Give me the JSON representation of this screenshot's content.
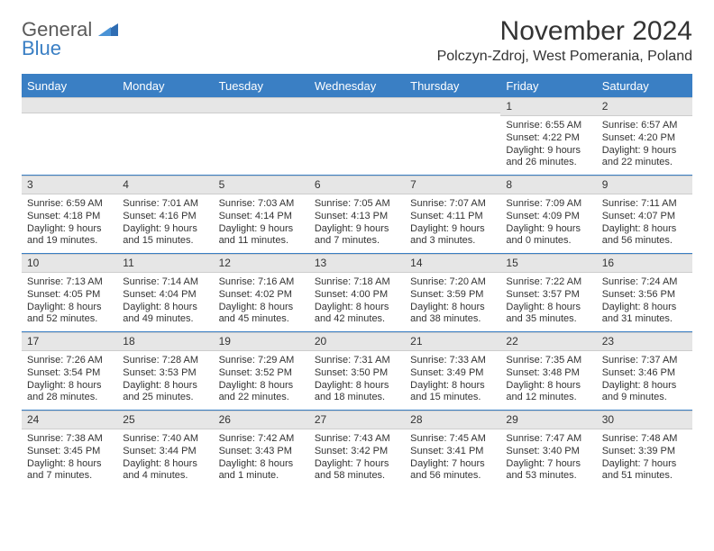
{
  "logo": {
    "general": "General",
    "blue": "Blue"
  },
  "title": "November 2024",
  "subtitle": "Polczyn-Zdroj, West Pomerania, Poland",
  "colors": {
    "brand_blue": "#3a7fc4",
    "header_text": "#ffffff",
    "daynum_bg": "#e6e6e6",
    "text": "#333333"
  },
  "day_names": [
    "Sunday",
    "Monday",
    "Tuesday",
    "Wednesday",
    "Thursday",
    "Friday",
    "Saturday"
  ],
  "weeks": [
    [
      {
        "n": "",
        "sr": "",
        "ss": "",
        "dl": ""
      },
      {
        "n": "",
        "sr": "",
        "ss": "",
        "dl": ""
      },
      {
        "n": "",
        "sr": "",
        "ss": "",
        "dl": ""
      },
      {
        "n": "",
        "sr": "",
        "ss": "",
        "dl": ""
      },
      {
        "n": "",
        "sr": "",
        "ss": "",
        "dl": ""
      },
      {
        "n": "1",
        "sr": "Sunrise: 6:55 AM",
        "ss": "Sunset: 4:22 PM",
        "dl": "Daylight: 9 hours and 26 minutes."
      },
      {
        "n": "2",
        "sr": "Sunrise: 6:57 AM",
        "ss": "Sunset: 4:20 PM",
        "dl": "Daylight: 9 hours and 22 minutes."
      }
    ],
    [
      {
        "n": "3",
        "sr": "Sunrise: 6:59 AM",
        "ss": "Sunset: 4:18 PM",
        "dl": "Daylight: 9 hours and 19 minutes."
      },
      {
        "n": "4",
        "sr": "Sunrise: 7:01 AM",
        "ss": "Sunset: 4:16 PM",
        "dl": "Daylight: 9 hours and 15 minutes."
      },
      {
        "n": "5",
        "sr": "Sunrise: 7:03 AM",
        "ss": "Sunset: 4:14 PM",
        "dl": "Daylight: 9 hours and 11 minutes."
      },
      {
        "n": "6",
        "sr": "Sunrise: 7:05 AM",
        "ss": "Sunset: 4:13 PM",
        "dl": "Daylight: 9 hours and 7 minutes."
      },
      {
        "n": "7",
        "sr": "Sunrise: 7:07 AM",
        "ss": "Sunset: 4:11 PM",
        "dl": "Daylight: 9 hours and 3 minutes."
      },
      {
        "n": "8",
        "sr": "Sunrise: 7:09 AM",
        "ss": "Sunset: 4:09 PM",
        "dl": "Daylight: 9 hours and 0 minutes."
      },
      {
        "n": "9",
        "sr": "Sunrise: 7:11 AM",
        "ss": "Sunset: 4:07 PM",
        "dl": "Daylight: 8 hours and 56 minutes."
      }
    ],
    [
      {
        "n": "10",
        "sr": "Sunrise: 7:13 AM",
        "ss": "Sunset: 4:05 PM",
        "dl": "Daylight: 8 hours and 52 minutes."
      },
      {
        "n": "11",
        "sr": "Sunrise: 7:14 AM",
        "ss": "Sunset: 4:04 PM",
        "dl": "Daylight: 8 hours and 49 minutes."
      },
      {
        "n": "12",
        "sr": "Sunrise: 7:16 AM",
        "ss": "Sunset: 4:02 PM",
        "dl": "Daylight: 8 hours and 45 minutes."
      },
      {
        "n": "13",
        "sr": "Sunrise: 7:18 AM",
        "ss": "Sunset: 4:00 PM",
        "dl": "Daylight: 8 hours and 42 minutes."
      },
      {
        "n": "14",
        "sr": "Sunrise: 7:20 AM",
        "ss": "Sunset: 3:59 PM",
        "dl": "Daylight: 8 hours and 38 minutes."
      },
      {
        "n": "15",
        "sr": "Sunrise: 7:22 AM",
        "ss": "Sunset: 3:57 PM",
        "dl": "Daylight: 8 hours and 35 minutes."
      },
      {
        "n": "16",
        "sr": "Sunrise: 7:24 AM",
        "ss": "Sunset: 3:56 PM",
        "dl": "Daylight: 8 hours and 31 minutes."
      }
    ],
    [
      {
        "n": "17",
        "sr": "Sunrise: 7:26 AM",
        "ss": "Sunset: 3:54 PM",
        "dl": "Daylight: 8 hours and 28 minutes."
      },
      {
        "n": "18",
        "sr": "Sunrise: 7:28 AM",
        "ss": "Sunset: 3:53 PM",
        "dl": "Daylight: 8 hours and 25 minutes."
      },
      {
        "n": "19",
        "sr": "Sunrise: 7:29 AM",
        "ss": "Sunset: 3:52 PM",
        "dl": "Daylight: 8 hours and 22 minutes."
      },
      {
        "n": "20",
        "sr": "Sunrise: 7:31 AM",
        "ss": "Sunset: 3:50 PM",
        "dl": "Daylight: 8 hours and 18 minutes."
      },
      {
        "n": "21",
        "sr": "Sunrise: 7:33 AM",
        "ss": "Sunset: 3:49 PM",
        "dl": "Daylight: 8 hours and 15 minutes."
      },
      {
        "n": "22",
        "sr": "Sunrise: 7:35 AM",
        "ss": "Sunset: 3:48 PM",
        "dl": "Daylight: 8 hours and 12 minutes."
      },
      {
        "n": "23",
        "sr": "Sunrise: 7:37 AM",
        "ss": "Sunset: 3:46 PM",
        "dl": "Daylight: 8 hours and 9 minutes."
      }
    ],
    [
      {
        "n": "24",
        "sr": "Sunrise: 7:38 AM",
        "ss": "Sunset: 3:45 PM",
        "dl": "Daylight: 8 hours and 7 minutes."
      },
      {
        "n": "25",
        "sr": "Sunrise: 7:40 AM",
        "ss": "Sunset: 3:44 PM",
        "dl": "Daylight: 8 hours and 4 minutes."
      },
      {
        "n": "26",
        "sr": "Sunrise: 7:42 AM",
        "ss": "Sunset: 3:43 PM",
        "dl": "Daylight: 8 hours and 1 minute."
      },
      {
        "n": "27",
        "sr": "Sunrise: 7:43 AM",
        "ss": "Sunset: 3:42 PM",
        "dl": "Daylight: 7 hours and 58 minutes."
      },
      {
        "n": "28",
        "sr": "Sunrise: 7:45 AM",
        "ss": "Sunset: 3:41 PM",
        "dl": "Daylight: 7 hours and 56 minutes."
      },
      {
        "n": "29",
        "sr": "Sunrise: 7:47 AM",
        "ss": "Sunset: 3:40 PM",
        "dl": "Daylight: 7 hours and 53 minutes."
      },
      {
        "n": "30",
        "sr": "Sunrise: 7:48 AM",
        "ss": "Sunset: 3:39 PM",
        "dl": "Daylight: 7 hours and 51 minutes."
      }
    ]
  ]
}
